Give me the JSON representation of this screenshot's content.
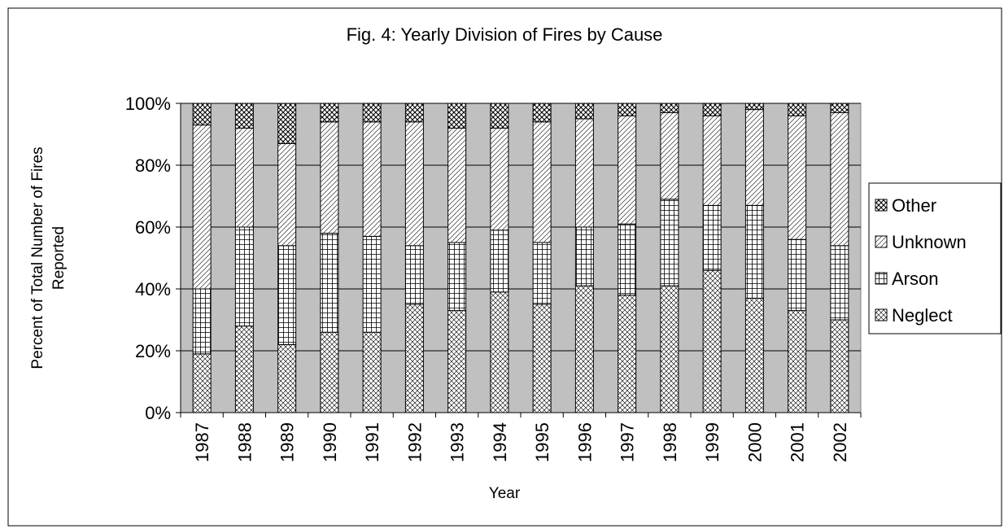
{
  "chart_data": {
    "type": "stacked-bar",
    "title": "Fig. 4: Yearly Division of Fires by Cause",
    "x_label": "Year",
    "y_label": [
      "Percent of Total Number of Fires",
      "Reported"
    ],
    "categories": [
      "1987",
      "1988",
      "1989",
      "1990",
      "1991",
      "1992",
      "1993",
      "1994",
      "1995",
      "1996",
      "1997",
      "1998",
      "1999",
      "2000",
      "2001",
      "2002"
    ],
    "series": [
      {
        "name": "Neglect",
        "color": "#ffffff",
        "values": [
          19,
          28,
          22,
          26,
          26,
          35,
          33,
          39,
          35,
          41,
          38,
          41,
          46,
          37,
          33,
          30
        ]
      },
      {
        "name": "Arson",
        "color": "#ffffff",
        "values": [
          21,
          32,
          32,
          32,
          31,
          19,
          22,
          20,
          20,
          19,
          23,
          28,
          21,
          30,
          23,
          24
        ]
      },
      {
        "name": "Unknown",
        "color": "#ffffff",
        "values": [
          53,
          32,
          33,
          36,
          37,
          40,
          37,
          33,
          39,
          35,
          35,
          28,
          29,
          31,
          40,
          43
        ]
      },
      {
        "name": "Other",
        "color": "#ffffff",
        "values": [
          7,
          8,
          13,
          6,
          6,
          6,
          8,
          8,
          6,
          5,
          4,
          3,
          4,
          2,
          4,
          3
        ]
      }
    ],
    "ylim": [
      0,
      100
    ],
    "yticks": [
      {
        "value": 0,
        "label": "0%"
      },
      {
        "value": 20,
        "label": "20%"
      },
      {
        "value": 40,
        "label": "40%"
      },
      {
        "value": 60,
        "label": "60%"
      },
      {
        "value": 80,
        "label": "80%"
      },
      {
        "value": 100,
        "label": "100%"
      }
    ],
    "grid": true,
    "plot_background": "#c0c0c0",
    "legend": "right"
  }
}
